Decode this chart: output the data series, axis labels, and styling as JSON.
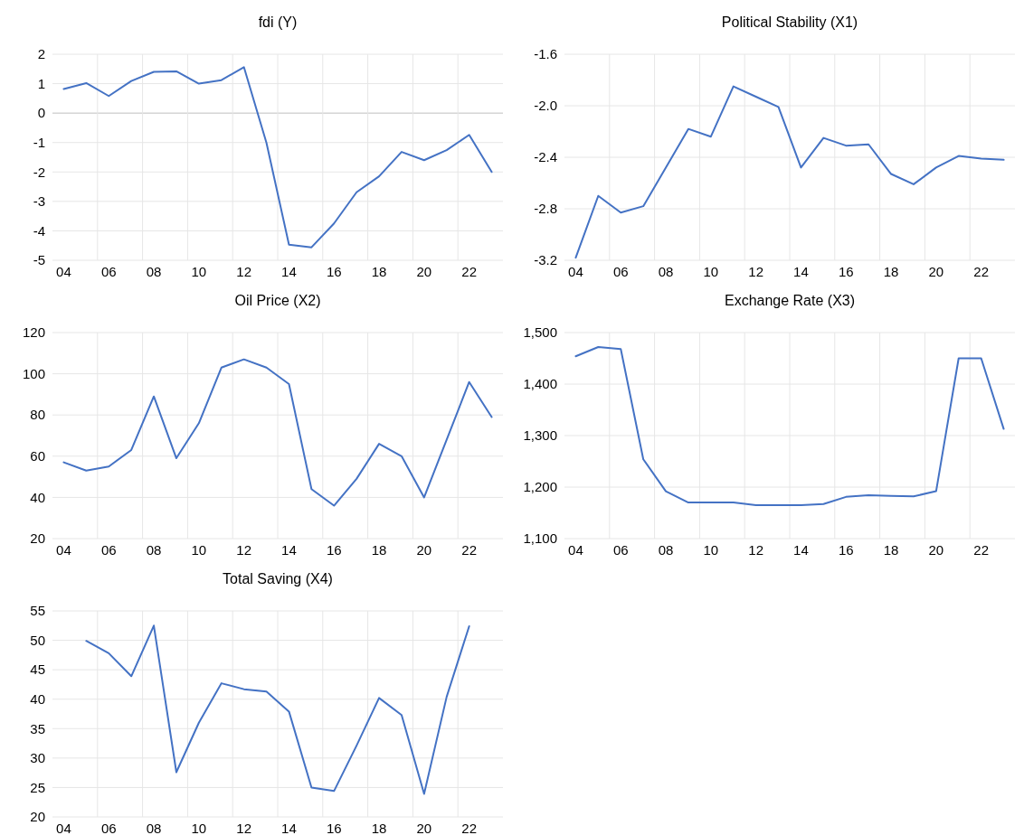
{
  "chart_data": [
    {
      "type": "line",
      "title": "fdi (Y)",
      "categories": [
        "04",
        null,
        "06",
        null,
        "08",
        null,
        "10",
        null,
        "12",
        null,
        "14",
        null,
        "16",
        null,
        "18",
        null,
        "20",
        null,
        "22",
        null
      ],
      "color": "#4472c4",
      "grid": true,
      "ylim": [
        -5,
        2
      ],
      "yticks": [
        -5,
        -4,
        -3,
        -2,
        -1,
        0,
        1,
        2
      ],
      "values": [
        0.82,
        1.02,
        0.58,
        1.09,
        1.4,
        1.42,
        1.0,
        1.12,
        1.56,
        -1.01,
        -4.47,
        -4.56,
        -3.75,
        -2.69,
        -2.15,
        -1.32,
        -1.6,
        -1.26,
        -0.74,
        -2.0
      ]
    },
    {
      "type": "line",
      "title": "Political Stability (X1)",
      "categories": [
        "04",
        null,
        "06",
        null,
        "08",
        null,
        "10",
        null,
        "12",
        null,
        "14",
        null,
        "16",
        null,
        "18",
        null,
        "20",
        null,
        "22",
        null
      ],
      "color": "#4472c4",
      "grid": true,
      "ylim": [
        -3.2,
        -1.6
      ],
      "yticks": [
        {
          "value": -3.2,
          "label": "-3.2"
        },
        {
          "value": -2.8,
          "label": "-2.8"
        },
        {
          "value": -2.4,
          "label": "-2.4"
        },
        {
          "value": -2,
          "label": "-2.0"
        },
        {
          "value": -1.6,
          "label": "-1.6"
        }
      ],
      "values": [
        -3.18,
        -2.7,
        -2.83,
        -2.78,
        -2.48,
        -2.18,
        -2.24,
        -1.85,
        -1.93,
        -2.01,
        -2.48,
        -2.25,
        -2.31,
        -2.3,
        -2.53,
        -2.61,
        -2.48,
        -2.39,
        -2.41,
        -2.42
      ]
    },
    {
      "type": "line",
      "title": "Oil Price (X2)",
      "categories": [
        "04",
        null,
        "06",
        null,
        "08",
        null,
        "10",
        null,
        "12",
        null,
        "14",
        null,
        "16",
        null,
        "18",
        null,
        "20",
        null,
        "22",
        null
      ],
      "color": "#4472c4",
      "grid": true,
      "ylim": [
        20,
        120
      ],
      "yticks": [
        20,
        40,
        60,
        80,
        100,
        120
      ],
      "values": [
        57,
        53,
        55,
        63,
        89,
        59,
        76,
        103,
        107,
        103,
        95,
        44,
        36,
        49,
        66,
        60,
        40,
        68,
        96,
        79
      ]
    },
    {
      "type": "line",
      "title": "Exchange Rate (X3)",
      "categories": [
        "04",
        null,
        "06",
        null,
        "08",
        null,
        "10",
        null,
        "12",
        null,
        "14",
        null,
        "16",
        null,
        "18",
        null,
        "20",
        null,
        "22",
        null
      ],
      "color": "#4472c4",
      "grid": true,
      "ylim": [
        1100,
        1500
      ],
      "yticks": [
        {
          "value": 1100,
          "label": "1,100"
        },
        {
          "value": 1200,
          "label": "1,200"
        },
        {
          "value": 1300,
          "label": "1,300"
        },
        {
          "value": 1400,
          "label": "1,400"
        },
        {
          "value": 1500,
          "label": "1,500"
        }
      ],
      "values": [
        1454,
        1472,
        1468,
        1254,
        1192,
        1170,
        1170,
        1170,
        1165,
        1165,
        1165,
        1167,
        1181,
        1184,
        1183,
        1182,
        1192,
        1450,
        1450,
        1313
      ]
    },
    {
      "type": "line",
      "title": "Total Saving (X4)",
      "categories": [
        "04",
        null,
        "06",
        null,
        "08",
        null,
        "10",
        null,
        "12",
        null,
        "14",
        null,
        "16",
        null,
        "18",
        null,
        "20",
        null,
        "22",
        null
      ],
      "color": "#4472c4",
      "grid": true,
      "ylim": [
        20,
        55
      ],
      "yticks": [
        20,
        25,
        30,
        35,
        40,
        45,
        50,
        55
      ],
      "values": [
        null,
        49.9,
        47.8,
        43.9,
        52.5,
        27.6,
        36.0,
        42.7,
        41.7,
        41.3,
        37.9,
        25.0,
        24.4,
        32.1,
        40.2,
        37.3,
        23.9,
        40.4,
        52.4,
        null
      ]
    }
  ]
}
